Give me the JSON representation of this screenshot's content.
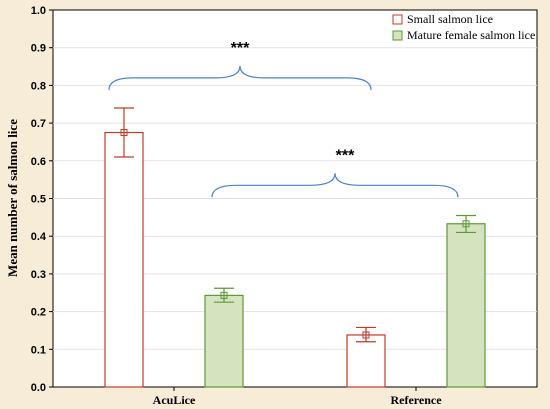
{
  "chart_data": {
    "type": "bar",
    "categories": [
      "AcuLice",
      "Reference"
    ],
    "series": [
      {
        "name": "Small salmon lice",
        "values": [
          0.675,
          0.138
        ],
        "err_low": [
          0.61,
          0.12
        ],
        "err_high": [
          0.74,
          0.158
        ],
        "color": "#c0392b",
        "fill": "#ffffff"
      },
      {
        "name": "Mature female salmon lice",
        "values": [
          0.243,
          0.433
        ],
        "err_low": [
          0.225,
          0.41
        ],
        "err_high": [
          0.262,
          0.455
        ],
        "color": "#5a9a3a",
        "fill": "#d6e3bf"
      }
    ],
    "ylabel": "Mean number of salmon lice",
    "xlabel": "",
    "ylim": [
      0,
      1.0
    ],
    "yticks": [
      "0.0",
      "0.1",
      "0.2",
      "0.3",
      "0.4",
      "0.5",
      "0.6",
      "0.7",
      "0.8",
      "0.9",
      "1.0"
    ],
    "grid": true,
    "legend_position": "top-right",
    "annotations": [
      {
        "text": "***",
        "spans": "AcuLice: Small salmon lice – Reference: Small salmon lice"
      },
      {
        "text": "***",
        "spans": "AcuLice: Mature female salmon lice – Reference: Mature female salmon lice"
      }
    ],
    "bracket_color": "#4a7fd0"
  }
}
